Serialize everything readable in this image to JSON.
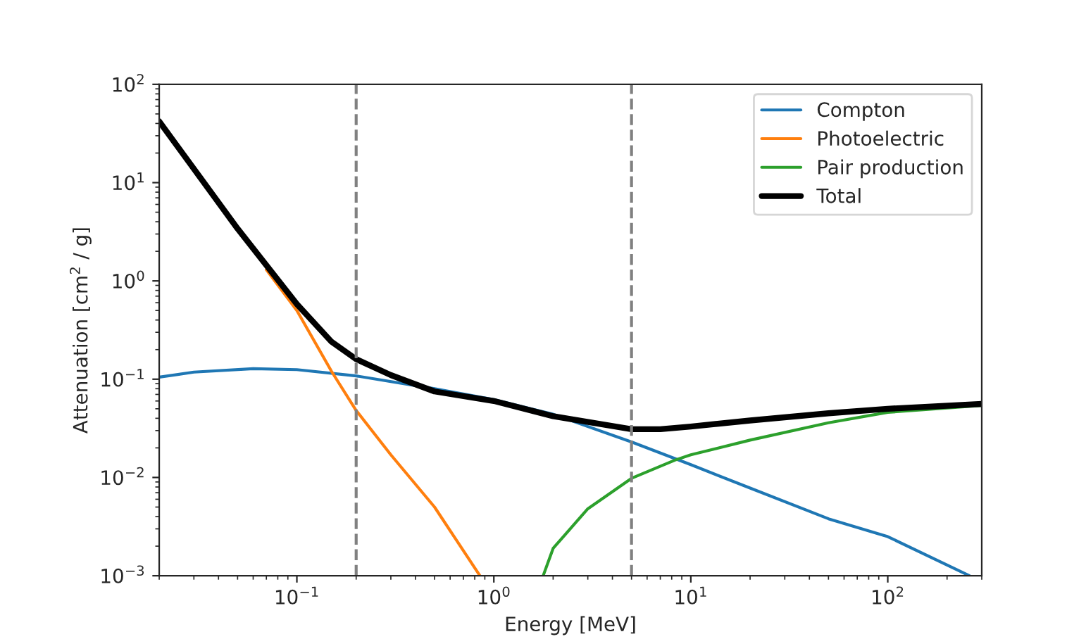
{
  "chart_data": {
    "type": "line",
    "xlabel": "Energy [MeV]",
    "ylabel": "Attenuation [cm$^{2}$ / g]",
    "log": "xy",
    "xlim": [
      0.02,
      300
    ],
    "ylim": [
      0.001,
      100
    ],
    "xticks": [
      {
        "value": 0.1,
        "label": "10$^{−1}$"
      },
      {
        "value": 1,
        "label": "10$^{0}$"
      },
      {
        "value": 10,
        "label": "10$^{1}$"
      },
      {
        "value": 100,
        "label": "10$^{2}$"
      }
    ],
    "yticks": [
      {
        "value": 0.001,
        "label": "10$^{−3}$"
      },
      {
        "value": 0.01,
        "label": "10$^{−2}$"
      },
      {
        "value": 0.1,
        "label": "10$^{−1}$"
      },
      {
        "value": 1,
        "label": "10$^{0}$"
      },
      {
        "value": 10,
        "label": "10$^{1}$"
      },
      {
        "value": 100,
        "label": "10$^{2}$"
      }
    ],
    "grid": false,
    "legend": "top right",
    "line_style": "solid",
    "marker": "none",
    "ref_lines": [
      {
        "axis": "x",
        "value": 0.2,
        "color": "#808080",
        "line_style": "dashed"
      },
      {
        "axis": "x",
        "value": 5,
        "color": "#808080",
        "line_style": "dashed"
      }
    ],
    "series": [
      {
        "name": "Compton",
        "color": "#1f77b4",
        "x": [
          0.02,
          0.03,
          0.06,
          0.1,
          0.2,
          0.5,
          1,
          2,
          5,
          10,
          20,
          50,
          100,
          260
        ],
        "values": [
          0.105,
          0.118,
          0.128,
          0.125,
          0.108,
          0.08,
          0.062,
          0.044,
          0.023,
          0.0135,
          0.0078,
          0.0038,
          0.0025,
          0.001
        ]
      },
      {
        "name": "Photoelectric",
        "color": "#ff7f0e",
        "x": [
          0.07,
          0.1,
          0.15,
          0.2,
          0.3,
          0.5,
          0.85
        ],
        "values": [
          1.3,
          0.5,
          0.12,
          0.048,
          0.017,
          0.005,
          0.001
        ]
      },
      {
        "name": "Pair production",
        "color": "#2ca02c",
        "x": [
          1.78,
          2,
          3,
          5,
          8.3,
          10,
          20,
          50,
          100,
          300
        ],
        "values": [
          0.001,
          0.0019,
          0.0048,
          0.0098,
          0.015,
          0.017,
          0.024,
          0.036,
          0.046,
          0.054
        ]
      },
      {
        "name": "Total",
        "color": "#000000",
        "x": [
          0.02,
          0.05,
          0.1,
          0.15,
          0.2,
          0.3,
          0.5,
          1,
          2,
          5,
          7,
          10,
          20,
          50,
          100,
          300
        ],
        "values": [
          42,
          3.4,
          0.58,
          0.24,
          0.16,
          0.11,
          0.075,
          0.06,
          0.042,
          0.031,
          0.031,
          0.033,
          0.038,
          0.045,
          0.05,
          0.056
        ]
      }
    ]
  }
}
